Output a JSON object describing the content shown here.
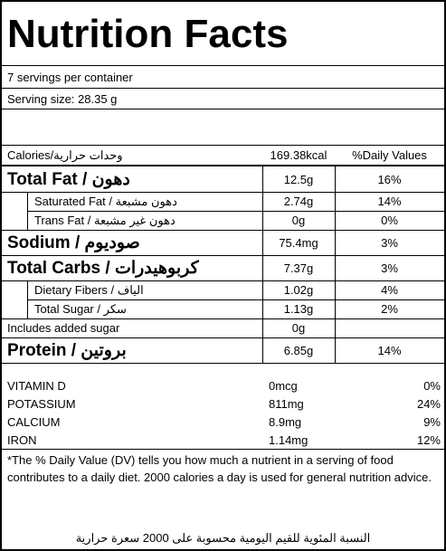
{
  "header": {
    "title": "Nutrition Facts",
    "servings": "7 servings per container",
    "serving_size": "Serving size: 28.35 g"
  },
  "calories_row": {
    "label": "Calories/وحدات حرارية",
    "amount": "169.38kcal",
    "daily_values": "%Daily Values"
  },
  "nutrients": [
    {
      "label": "Total Fat / دهون",
      "amount": "12.5g",
      "dv": "16%",
      "level": "main"
    },
    {
      "label": "Saturated Fat / دهون مشبعة",
      "amount": "2.74g",
      "dv": "14%",
      "level": "sub"
    },
    {
      "label": "Trans Fat / دهون غير مشبعة",
      "amount": "0g",
      "dv": "0%",
      "level": "sub"
    },
    {
      "label": "Sodium / صوديوم",
      "amount": "75.4mg",
      "dv": "3%",
      "level": "main"
    },
    {
      "label": "Total Carbs / كربوهيدرات",
      "amount": "7.37g",
      "dv": "3%",
      "level": "main"
    },
    {
      "label": "Dietary Fibers / الياف",
      "amount": "1.02g",
      "dv": "4%",
      "level": "sub"
    },
    {
      "label": "Total Sugar / سكر",
      "amount": "1.13g",
      "dv": "2%",
      "level": "sub"
    },
    {
      "label": "Includes added sugar",
      "amount": "0g",
      "level": "plain"
    },
    {
      "label": "Protein / بروتين",
      "amount": "6.85g",
      "dv": "14%",
      "level": "main"
    }
  ],
  "vitamins": [
    {
      "name": "VITAMIN D",
      "amount": "0mcg",
      "dv": "0%"
    },
    {
      "name": "POTASSIUM",
      "amount": "811mg",
      "dv": "24%"
    },
    {
      "name": "CALCIUM",
      "amount": "8.9mg",
      "dv": "9%"
    },
    {
      "name": "IRON",
      "amount": "1.14mg",
      "dv": "12%"
    }
  ],
  "footnote": {
    "text": "*The % Daily Value (DV) tells you how much a nutrient in a serving of food contributes to a daily diet. 2000 calories a day is used for general nutrition advice.",
    "arabic": "النسبة المئوية للقيم اليومية محسوبة على 2000 سعرة حرارية"
  }
}
